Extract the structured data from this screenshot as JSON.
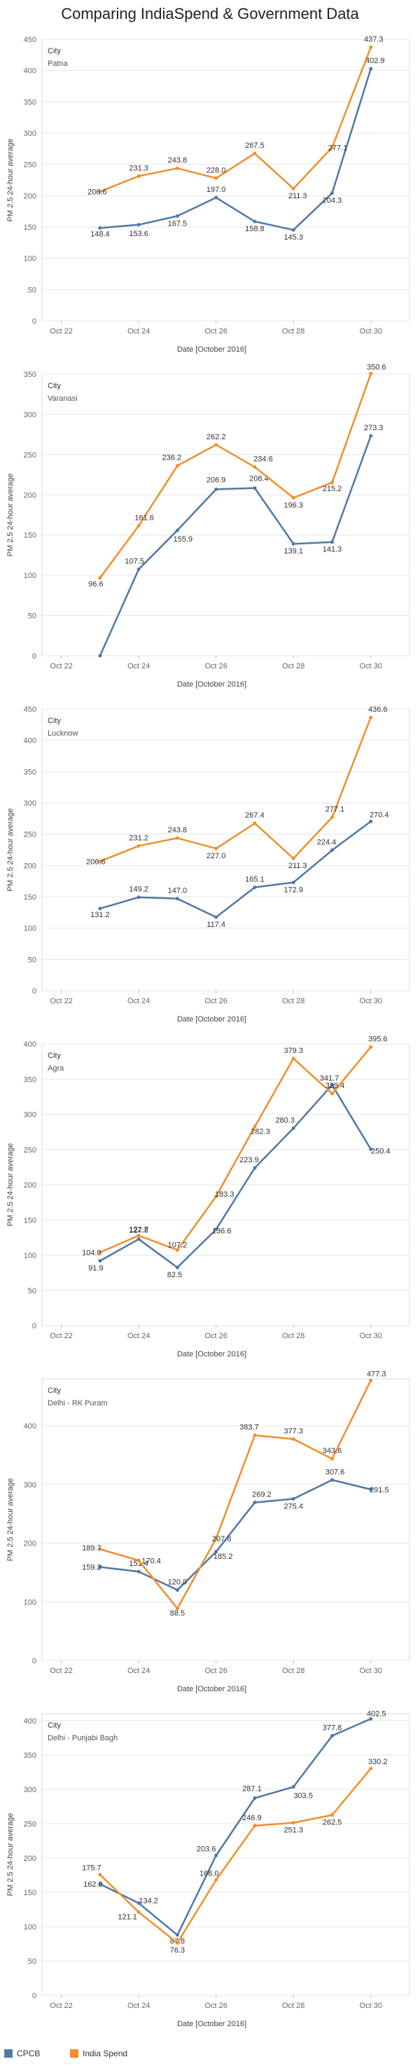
{
  "page": {
    "title": "Comparing IndiaSpend & Government Data"
  },
  "colors": {
    "cpcb": "#4e79a7",
    "indiaspend": "#f28e2b",
    "grid": "#e6e6e6",
    "axis": "#bbbbbb"
  },
  "legend": {
    "items": [
      {
        "label": "CPCB",
        "color": "#4e79a7"
      },
      {
        "label": "India Spend",
        "color": "#f28e2b"
      }
    ]
  },
  "chart_data": [
    {
      "type": "line",
      "city_label": "City",
      "city": "Patna",
      "xlabel": "Date [October 2016]",
      "ylabel": "PM 2.5 24-hour average",
      "x_ticks": [
        "Oct 22",
        "Oct 24",
        "Oct 26",
        "Oct 28",
        "Oct 30"
      ],
      "y_ticks": [
        0,
        50,
        100,
        150,
        200,
        250,
        300,
        350,
        400,
        450
      ],
      "ylim": [
        0,
        450
      ],
      "series": [
        {
          "name": "CPCB",
          "x": [
            "Oct 23",
            "Oct 24",
            "Oct 25",
            "Oct 26",
            "Oct 27",
            "Oct 28",
            "Oct 29",
            "Oct 30"
          ],
          "values": [
            148.4,
            153.6,
            167.5,
            197.0,
            158.8,
            145.3,
            204.3,
            402.9
          ]
        },
        {
          "name": "India Spend",
          "x": [
            "Oct 23",
            "Oct 24",
            "Oct 25",
            "Oct 26",
            "Oct 27",
            "Oct 28",
            "Oct 29",
            "Oct 30"
          ],
          "values": [
            206.6,
            231.3,
            243.8,
            228.0,
            267.5,
            211.3,
            277.1,
            437.3
          ]
        }
      ],
      "labels": {
        "CPCB": [
          "148.4",
          "153.6",
          "167.5",
          "197.0",
          "158.8",
          "145.3",
          "204.3",
          "402.9"
        ],
        "India Spend": [
          "206.6",
          "231.3",
          "243.8",
          "228.0",
          "267.5",
          "211.3",
          "277.1",
          "437.3"
        ]
      }
    },
    {
      "type": "line",
      "city_label": "City",
      "city": "Varanasi",
      "xlabel": "Date [October 2016]",
      "ylabel": "PM 2.5 24-hour average",
      "x_ticks": [
        "Oct 22",
        "Oct 24",
        "Oct 26",
        "Oct 28",
        "Oct 30"
      ],
      "y_ticks": [
        0,
        50,
        100,
        150,
        200,
        250,
        300,
        350
      ],
      "ylim": [
        0,
        350
      ],
      "series": [
        {
          "name": "CPCB",
          "x": [
            "Oct 23",
            "Oct 24",
            "Oct 25",
            "Oct 26",
            "Oct 27",
            "Oct 28",
            "Oct 29",
            "Oct 30"
          ],
          "values": [
            0,
            107.5,
            155.9,
            206.9,
            208.4,
            139.1,
            141.3,
            273.3
          ]
        },
        {
          "name": "India Spend",
          "x": [
            "Oct 23",
            "Oct 24",
            "Oct 25",
            "Oct 26",
            "Oct 27",
            "Oct 28",
            "Oct 29",
            "Oct 30"
          ],
          "values": [
            96.6,
            161.6,
            236.2,
            262.2,
            234.6,
            196.3,
            215.2,
            350.6
          ]
        }
      ],
      "labels": {
        "CPCB": [
          "",
          "107.5",
          "155.9",
          "206.9",
          "208.4",
          "139.1",
          "141.3",
          "273.3"
        ],
        "India Spend": [
          "96.6",
          "161.6",
          "236.2",
          "262.2",
          "234.6",
          "196.3",
          "215.2",
          "350.6"
        ]
      }
    },
    {
      "type": "line",
      "city_label": "City",
      "city": "Lucknow",
      "xlabel": "Date [October 2016]",
      "ylabel": "PM 2.5 24-hour average",
      "x_ticks": [
        "Oct 22",
        "Oct 24",
        "Oct 26",
        "Oct 28",
        "Oct 30"
      ],
      "y_ticks": [
        0,
        50,
        100,
        150,
        200,
        250,
        300,
        350,
        400,
        450
      ],
      "ylim": [
        0,
        450
      ],
      "series": [
        {
          "name": "CPCB",
          "x": [
            "Oct 23",
            "Oct 24",
            "Oct 25",
            "Oct 26",
            "Oct 27",
            "Oct 28",
            "Oct 29",
            "Oct 30"
          ],
          "values": [
            131.2,
            149.2,
            147.0,
            117.4,
            165.1,
            172.9,
            224.4,
            270.4
          ]
        },
        {
          "name": "India Spend",
          "x": [
            "Oct 23",
            "Oct 24",
            "Oct 25",
            "Oct 26",
            "Oct 27",
            "Oct 28",
            "Oct 29",
            "Oct 30"
          ],
          "values": [
            206.6,
            231.2,
            243.8,
            227.0,
            267.4,
            211.3,
            277.1,
            436.6
          ]
        }
      ],
      "labels": {
        "CPCB": [
          "131.2",
          "149.2",
          "147.0",
          "117.4",
          "165.1",
          "172.9",
          "224.4",
          "270.4"
        ],
        "India Spend": [
          "206.6",
          "231.2",
          "243.8",
          "227.0",
          "267.4",
          "211.3",
          "277.1",
          "436.6"
        ]
      }
    },
    {
      "type": "line",
      "city_label": "City",
      "city": "Agra",
      "xlabel": "Date [October 2016]",
      "ylabel": "PM 2.5 24-hour average",
      "x_ticks": [
        "Oct 22",
        "Oct 24",
        "Oct 26",
        "Oct 28",
        "Oct 30"
      ],
      "y_ticks": [
        0,
        50,
        100,
        150,
        200,
        250,
        300,
        350,
        400
      ],
      "ylim": [
        0,
        400
      ],
      "series": [
        {
          "name": "CPCB",
          "x": [
            "Oct 23",
            "Oct 24",
            "Oct 25",
            "Oct 26",
            "Oct 27",
            "Oct 28",
            "Oct 29",
            "Oct 30"
          ],
          "values": [
            91.9,
            122.7,
            82.5,
            136.6,
            223.9,
            280.3,
            341.7,
            250.4
          ]
        },
        {
          "name": "India Spend",
          "x": [
            "Oct 23",
            "Oct 24",
            "Oct 25",
            "Oct 26",
            "Oct 27",
            "Oct 28",
            "Oct 29",
            "Oct 30"
          ],
          "values": [
            104.0,
            127.8,
            107.2,
            183.3,
            282.3,
            379.3,
            329.4,
            395.6
          ]
        }
      ],
      "labels": {
        "CPCB": [
          "91.9",
          "122.7",
          "82.5",
          "136.6",
          "223.9",
          "280.3",
          "341.7",
          "250.4"
        ],
        "India Spend": [
          "104.0",
          "127.8",
          "107.2",
          "183.3",
          "282.3",
          "379.3",
          "329.4",
          "395.6"
        ]
      }
    },
    {
      "type": "line",
      "city_label": "City",
      "city": "Delhi - RK Puram",
      "xlabel": "Date [October 2016]",
      "ylabel": "PM 2.5 24-hour average",
      "x_ticks": [
        "Oct 22",
        "Oct 24",
        "Oct 26",
        "Oct 28",
        "Oct 30"
      ],
      "y_ticks": [
        0,
        100,
        200,
        300,
        400
      ],
      "ylim": [
        0,
        480
      ],
      "series": [
        {
          "name": "CPCB",
          "x": [
            "Oct 23",
            "Oct 24",
            "Oct 25",
            "Oct 26",
            "Oct 27",
            "Oct 28",
            "Oct 29",
            "Oct 30"
          ],
          "values": [
            159.2,
            151.4,
            120.0,
            185.2,
            269.2,
            275.4,
            307.6,
            291.5
          ]
        },
        {
          "name": "India Spend",
          "x": [
            "Oct 23",
            "Oct 24",
            "Oct 25",
            "Oct 26",
            "Oct 27",
            "Oct 28",
            "Oct 29",
            "Oct 30"
          ],
          "values": [
            189.7,
            170.4,
            88.5,
            207.8,
            383.7,
            377.3,
            343.6,
            477.3
          ]
        }
      ],
      "labels": {
        "CPCB": [
          "159.2",
          "151.4",
          "120.0",
          "185.2",
          "269.2",
          "275.4",
          "307.6",
          "291.5"
        ],
        "India Spend": [
          "189.7",
          "170.4",
          "88.5",
          "207.8",
          "383.7",
          "377.3",
          "343.6",
          "477.3"
        ]
      }
    },
    {
      "type": "line",
      "city_label": "City",
      "city": "Delhi - Punjabi Bagh",
      "xlabel": "Date [October 2016]",
      "ylabel": "PM 2.5 24-hour average",
      "x_ticks": [
        "Oct 22",
        "Oct 24",
        "Oct 26",
        "Oct 28",
        "Oct 30"
      ],
      "y_ticks": [
        0,
        50,
        100,
        150,
        200,
        250,
        300,
        350,
        400
      ],
      "ylim": [
        0,
        410
      ],
      "series": [
        {
          "name": "CPCB",
          "x": [
            "Oct 23",
            "Oct 24",
            "Oct 25",
            "Oct 26",
            "Oct 27",
            "Oct 28",
            "Oct 29",
            "Oct 30"
          ],
          "values": [
            162.0,
            134.2,
            87.8,
            203.6,
            287.1,
            303.5,
            377.8,
            402.5
          ]
        },
        {
          "name": "India Spend",
          "x": [
            "Oct 23",
            "Oct 24",
            "Oct 25",
            "Oct 26",
            "Oct 27",
            "Oct 28",
            "Oct 29",
            "Oct 30"
          ],
          "values": [
            175.7,
            121.1,
            76.3,
            168.0,
            246.9,
            251.3,
            262.5,
            330.2
          ]
        }
      ],
      "labels": {
        "CPCB": [
          "162.0",
          "134.2",
          "87.8",
          "203.6",
          "287.1",
          "303.5",
          "377.8",
          "402.5"
        ],
        "India Spend": [
          "175.7",
          "121.1",
          "76.3",
          "168.0",
          "246.9",
          "251.3",
          "262.5",
          "330.2"
        ]
      }
    }
  ]
}
